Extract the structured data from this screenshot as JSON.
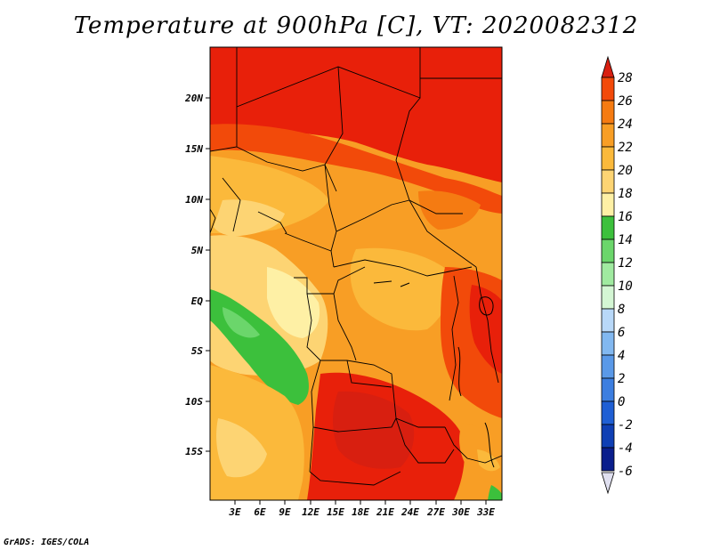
{
  "title": "Temperature at 900hPa [C], VT: 2020082312",
  "credit": "GrADS: IGES/COLA",
  "map": {
    "variable": "Temperature",
    "level": "900hPa",
    "units": "C",
    "valid_time": "2020082312",
    "lat_ticks": [
      "20N",
      "15N",
      "10N",
      "5N",
      "EQ",
      "5S",
      "10S",
      "15S"
    ],
    "lon_ticks": [
      "3E",
      "6E",
      "9E",
      "12E",
      "15E",
      "18E",
      "21E",
      "24E",
      "27E",
      "30E",
      "33E"
    ]
  },
  "colorbar": {
    "levels": [
      "28",
      "26",
      "24",
      "22",
      "20",
      "18",
      "16",
      "14",
      "12",
      "10",
      "8",
      "6",
      "4",
      "2",
      "0",
      "-2",
      "-4",
      "-6"
    ],
    "colors": [
      "#e8200a",
      "#f24a0a",
      "#f57b12",
      "#f89e25",
      "#fbb93b",
      "#fdd473",
      "#fef0a5",
      "#3cc03c",
      "#6bd66b",
      "#a0eaa0",
      "#d4f6d4",
      "#b8d8f8",
      "#82b8f0",
      "#5a99e8",
      "#3c7ee0",
      "#1f5fd4",
      "#0f3fb4",
      "#0a1e8c",
      "#050a5a"
    ],
    "top_color": "#d81f10",
    "bottom_color": "#e0e0f0"
  }
}
